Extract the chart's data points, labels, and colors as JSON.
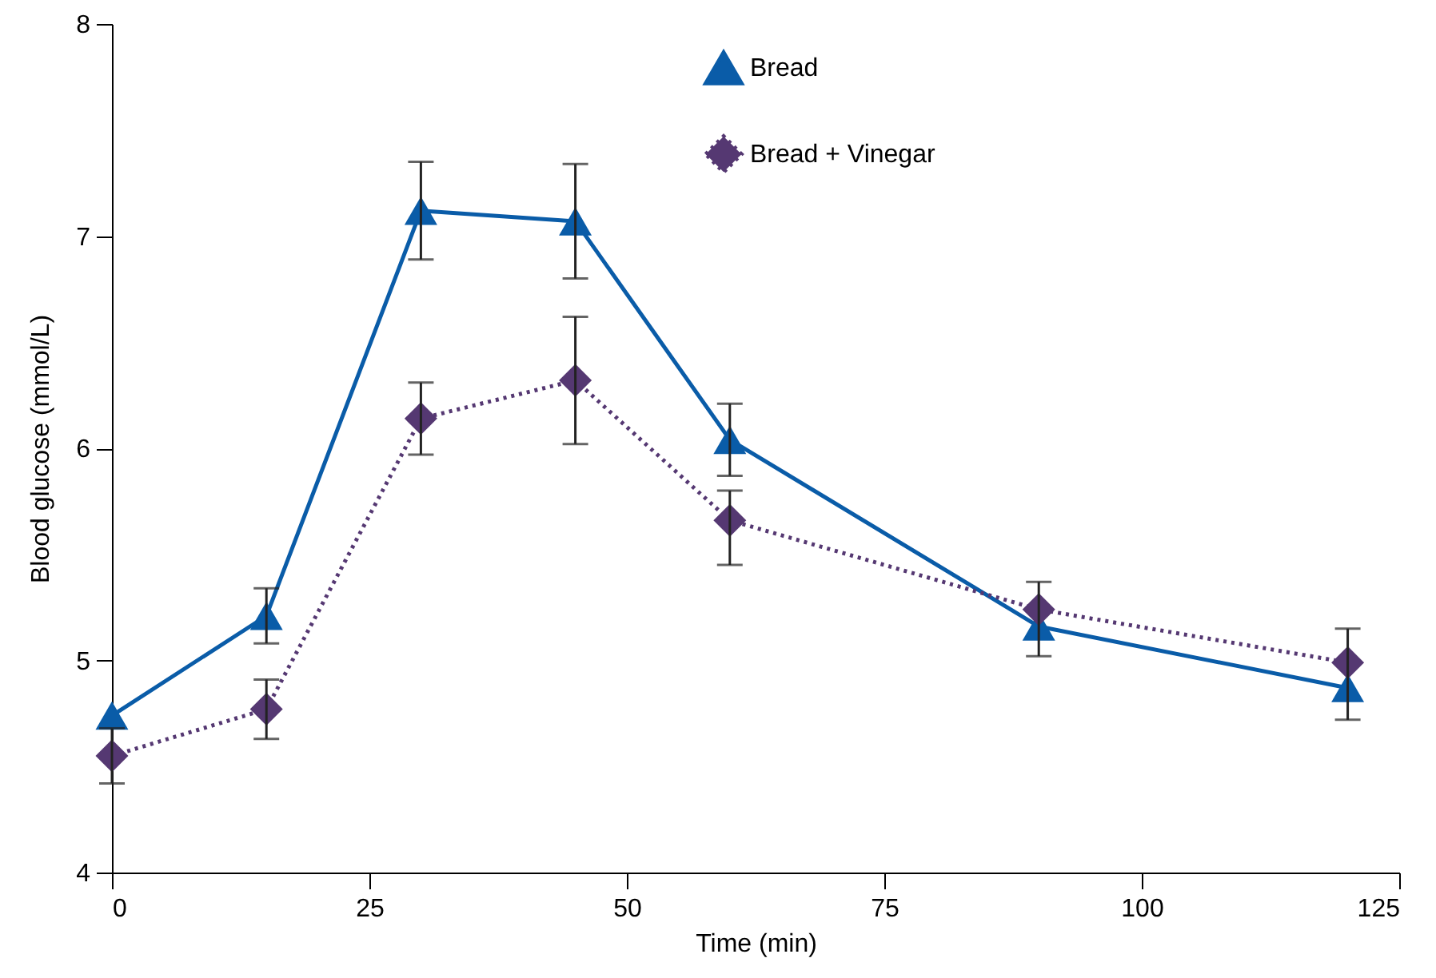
{
  "chart_data": {
    "type": "line",
    "xlabel": "Time (min)",
    "ylabel": "Blood glucose (mmol/L)",
    "x": [
      0,
      15,
      30,
      45,
      60,
      90,
      120
    ],
    "series": [
      {
        "name": "Bread",
        "color": "#0a5ca8",
        "marker": "triangle",
        "line_style": "solid",
        "values": [
          4.74,
          5.21,
          7.12,
          7.07,
          6.04,
          5.16,
          4.87
        ],
        "errors": [
          null,
          0.13,
          0.23,
          0.27,
          0.17,
          [
            5.02,
            5.37
          ],
          [
            4.72,
            5.15
          ]
        ]
      },
      {
        "name": "Bread + Vinegar",
        "color": "#553872",
        "marker": "diamond",
        "line_style": "dotted",
        "values": [
          4.55,
          4.77,
          6.14,
          6.32,
          5.66,
          5.24,
          4.99
        ],
        "errors": [
          0.13,
          0.14,
          0.17,
          0.3,
          [
            5.45,
            5.8
          ],
          null,
          null
        ]
      }
    ],
    "xlim": [
      0,
      125
    ],
    "xticks": [
      0,
      25,
      50,
      75,
      100,
      125
    ],
    "ylim": [
      4,
      8
    ],
    "yticks": [
      4,
      5,
      6,
      7,
      8
    ],
    "grid": false,
    "legend": "top right"
  }
}
